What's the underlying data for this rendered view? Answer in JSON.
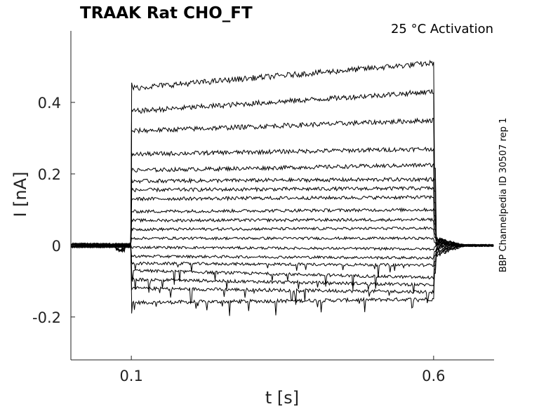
{
  "chart_data": {
    "type": "line",
    "title": "TRAAK  Rat  CHO_FT",
    "annotation": "25 °C  Activation",
    "side_label": "BBP Channelpedia ID 30507 rep 1",
    "xlabel": "t [s]",
    "ylabel": "I [nA]",
    "xlim": [
      0.0,
      0.7
    ],
    "ylim": [
      -0.32,
      0.6
    ],
    "xticks": [
      0.1,
      0.6
    ],
    "xtick_labels": [
      "0.1",
      "0.6"
    ],
    "yticks": [
      -0.2,
      0,
      0.2,
      0.4
    ],
    "ytick_labels": [
      "-0.2",
      "0",
      "0.2",
      "0.4"
    ],
    "grid": false,
    "pulse_start": 0.1,
    "pulse_end": 0.6,
    "series": [
      {
        "step_start": -0.16,
        "step_end": -0.15,
        "tail": -0.03
      },
      {
        "step_start": -0.12,
        "step_end": -0.13,
        "tail": -0.025
      },
      {
        "step_start": -0.095,
        "step_end": -0.11,
        "tail": -0.02
      },
      {
        "step_start": -0.07,
        "step_end": -0.09,
        "tail": -0.015
      },
      {
        "step_start": -0.05,
        "step_end": -0.055,
        "tail": -0.01
      },
      {
        "step_start": -0.03,
        "step_end": -0.035,
        "tail": -0.005
      },
      {
        "step_start": -0.005,
        "step_end": -0.01,
        "tail": 0.0
      },
      {
        "step_start": 0.02,
        "step_end": 0.02,
        "tail": 0.0
      },
      {
        "step_start": 0.045,
        "step_end": 0.048,
        "tail": 0.005
      },
      {
        "step_start": 0.07,
        "step_end": 0.072,
        "tail": 0.005
      },
      {
        "step_start": 0.095,
        "step_end": 0.1,
        "tail": 0.008
      },
      {
        "step_start": 0.13,
        "step_end": 0.135,
        "tail": 0.01
      },
      {
        "step_start": 0.155,
        "step_end": 0.16,
        "tail": 0.012
      },
      {
        "step_start": 0.18,
        "step_end": 0.185,
        "tail": 0.015
      },
      {
        "step_start": 0.21,
        "step_end": 0.225,
        "tail": 0.015
      },
      {
        "step_start": 0.255,
        "step_end": 0.27,
        "tail": 0.02
      },
      {
        "step_start": 0.32,
        "step_end": 0.35,
        "tail": 0.02
      },
      {
        "step_start": 0.375,
        "step_end": 0.43,
        "tail": 0.02
      },
      {
        "step_start": 0.44,
        "step_end": 0.51,
        "tail": 0.02
      }
    ]
  }
}
